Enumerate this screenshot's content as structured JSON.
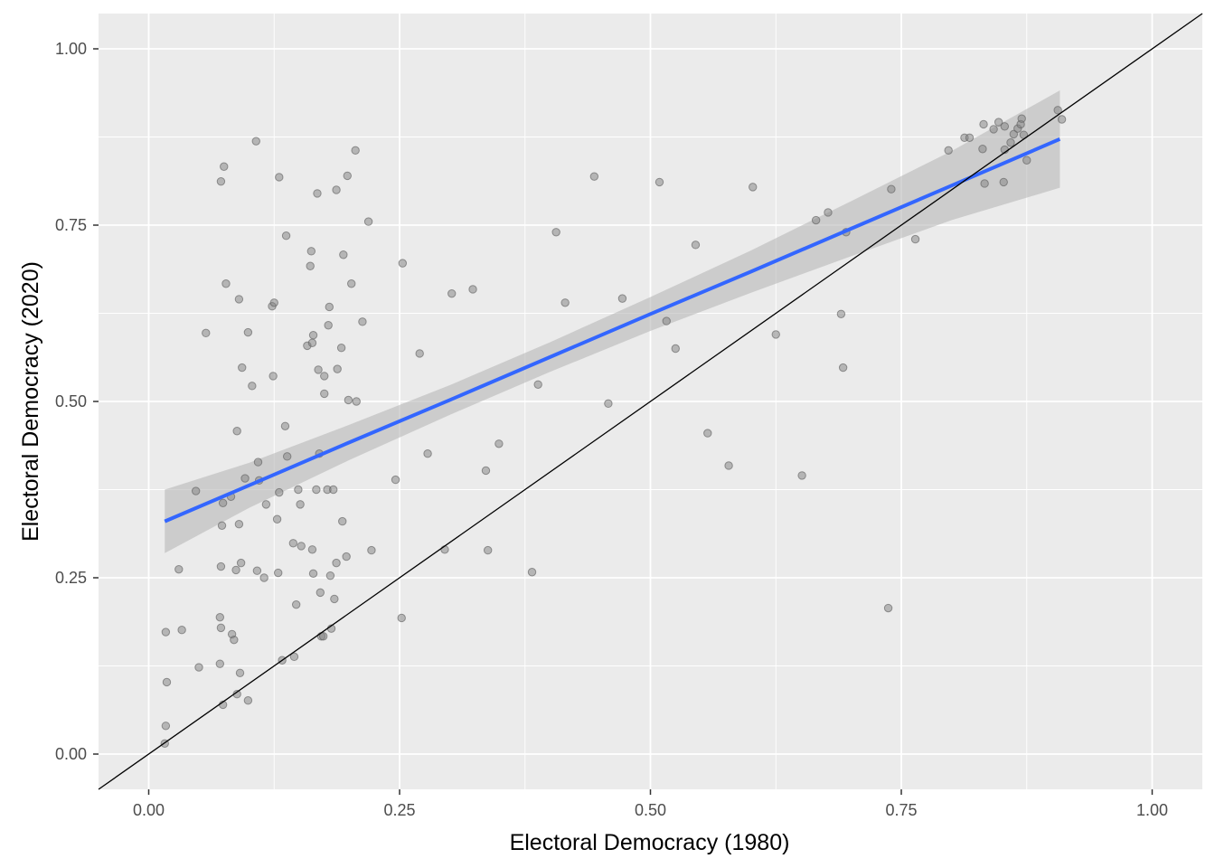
{
  "chart_data": {
    "type": "scatter",
    "xlabel": "Electoral Democracy (1980)",
    "ylabel": "Electoral Democracy (2020)",
    "xlim": [
      -0.05,
      1.05
    ],
    "ylim": [
      -0.05,
      1.05
    ],
    "x_ticks": [
      "0.00",
      "0.25",
      "0.50",
      "0.75",
      "1.00"
    ],
    "y_ticks": [
      "0.00",
      "0.25",
      "0.50",
      "0.75",
      "1.00"
    ],
    "grid": true,
    "colors": {
      "panel_background": "#ebebeb",
      "grid": "#ffffff",
      "points": "#7f7f7f",
      "fit_line": "#3366ff",
      "confidence_band": "#b8b8b8",
      "reference_line": "#000000"
    },
    "reference_line": {
      "intercept": 0,
      "slope": 1
    },
    "fit_line": {
      "x": [
        0.016,
        0.1,
        0.2,
        0.3,
        0.4,
        0.5,
        0.6,
        0.7,
        0.8,
        0.908
      ],
      "y": [
        0.33,
        0.381,
        0.442,
        0.502,
        0.563,
        0.624,
        0.684,
        0.745,
        0.806,
        0.872
      ],
      "lower": [
        0.285,
        0.349,
        0.417,
        0.481,
        0.542,
        0.6,
        0.654,
        0.706,
        0.757,
        0.803
      ],
      "upper": [
        0.375,
        0.413,
        0.467,
        0.523,
        0.584,
        0.648,
        0.714,
        0.784,
        0.855,
        0.941
      ]
    },
    "points": [
      [
        0.016,
        0.015
      ],
      [
        0.017,
        0.04
      ],
      [
        0.017,
        0.173
      ],
      [
        0.018,
        0.102
      ],
      [
        0.03,
        0.262
      ],
      [
        0.033,
        0.176
      ],
      [
        0.047,
        0.373
      ],
      [
        0.05,
        0.123
      ],
      [
        0.057,
        0.597
      ],
      [
        0.071,
        0.128
      ],
      [
        0.071,
        0.194
      ],
      [
        0.072,
        0.179
      ],
      [
        0.072,
        0.266
      ],
      [
        0.072,
        0.812
      ],
      [
        0.073,
        0.324
      ],
      [
        0.074,
        0.356
      ],
      [
        0.074,
        0.07
      ],
      [
        0.075,
        0.833
      ],
      [
        0.077,
        0.667
      ],
      [
        0.082,
        0.365
      ],
      [
        0.083,
        0.17
      ],
      [
        0.085,
        0.162
      ],
      [
        0.087,
        0.261
      ],
      [
        0.088,
        0.085
      ],
      [
        0.088,
        0.458
      ],
      [
        0.09,
        0.645
      ],
      [
        0.09,
        0.326
      ],
      [
        0.091,
        0.115
      ],
      [
        0.092,
        0.271
      ],
      [
        0.093,
        0.548
      ],
      [
        0.096,
        0.391
      ],
      [
        0.099,
        0.598
      ],
      [
        0.099,
        0.076
      ],
      [
        0.103,
        0.522
      ],
      [
        0.107,
        0.869
      ],
      [
        0.108,
        0.26
      ],
      [
        0.109,
        0.414
      ],
      [
        0.11,
        0.388
      ],
      [
        0.115,
        0.25
      ],
      [
        0.117,
        0.354
      ],
      [
        0.123,
        0.635
      ],
      [
        0.124,
        0.536
      ],
      [
        0.125,
        0.64
      ],
      [
        0.128,
        0.333
      ],
      [
        0.129,
        0.257
      ],
      [
        0.13,
        0.818
      ],
      [
        0.13,
        0.371
      ],
      [
        0.133,
        0.133
      ],
      [
        0.136,
        0.465
      ],
      [
        0.137,
        0.735
      ],
      [
        0.138,
        0.422
      ],
      [
        0.144,
        0.299
      ],
      [
        0.145,
        0.138
      ],
      [
        0.147,
        0.212
      ],
      [
        0.149,
        0.375
      ],
      [
        0.151,
        0.354
      ],
      [
        0.152,
        0.295
      ],
      [
        0.158,
        0.579
      ],
      [
        0.161,
        0.692
      ],
      [
        0.162,
        0.713
      ],
      [
        0.163,
        0.583
      ],
      [
        0.163,
        0.29
      ],
      [
        0.164,
        0.256
      ],
      [
        0.164,
        0.594
      ],
      [
        0.167,
        0.375
      ],
      [
        0.168,
        0.795
      ],
      [
        0.169,
        0.545
      ],
      [
        0.17,
        0.426
      ],
      [
        0.171,
        0.229
      ],
      [
        0.172,
        0.167
      ],
      [
        0.174,
        0.167
      ],
      [
        0.175,
        0.536
      ],
      [
        0.175,
        0.511
      ],
      [
        0.178,
        0.375
      ],
      [
        0.179,
        0.608
      ],
      [
        0.18,
        0.634
      ],
      [
        0.181,
        0.253
      ],
      [
        0.182,
        0.178
      ],
      [
        0.184,
        0.375
      ],
      [
        0.185,
        0.22
      ],
      [
        0.187,
        0.8
      ],
      [
        0.187,
        0.271
      ],
      [
        0.188,
        0.546
      ],
      [
        0.192,
        0.576
      ],
      [
        0.193,
        0.33
      ],
      [
        0.194,
        0.708
      ],
      [
        0.197,
        0.28
      ],
      [
        0.198,
        0.82
      ],
      [
        0.199,
        0.502
      ],
      [
        0.202,
        0.667
      ],
      [
        0.206,
        0.856
      ],
      [
        0.207,
        0.5
      ],
      [
        0.213,
        0.613
      ],
      [
        0.219,
        0.755
      ],
      [
        0.222,
        0.289
      ],
      [
        0.246,
        0.389
      ],
      [
        0.252,
        0.193
      ],
      [
        0.253,
        0.696
      ],
      [
        0.27,
        0.568
      ],
      [
        0.278,
        0.426
      ],
      [
        0.295,
        0.29
      ],
      [
        0.302,
        0.653
      ],
      [
        0.323,
        0.659
      ],
      [
        0.336,
        0.402
      ],
      [
        0.338,
        0.289
      ],
      [
        0.349,
        0.44
      ],
      [
        0.382,
        0.258
      ],
      [
        0.388,
        0.524
      ],
      [
        0.406,
        0.74
      ],
      [
        0.415,
        0.64
      ],
      [
        0.444,
        0.819
      ],
      [
        0.458,
        0.497
      ],
      [
        0.472,
        0.646
      ],
      [
        0.509,
        0.811
      ],
      [
        0.516,
        0.614
      ],
      [
        0.525,
        0.575
      ],
      [
        0.545,
        0.722
      ],
      [
        0.557,
        0.455
      ],
      [
        0.578,
        0.409
      ],
      [
        0.602,
        0.804
      ],
      [
        0.625,
        0.595
      ],
      [
        0.651,
        0.395
      ],
      [
        0.665,
        0.757
      ],
      [
        0.677,
        0.768
      ],
      [
        0.69,
        0.624
      ],
      [
        0.692,
        0.548
      ],
      [
        0.695,
        0.74
      ],
      [
        0.737,
        0.207
      ],
      [
        0.74,
        0.801
      ],
      [
        0.764,
        0.73
      ],
      [
        0.797,
        0.856
      ],
      [
        0.813,
        0.874
      ],
      [
        0.818,
        0.874
      ],
      [
        0.831,
        0.858
      ],
      [
        0.832,
        0.893
      ],
      [
        0.833,
        0.809
      ],
      [
        0.842,
        0.886
      ],
      [
        0.847,
        0.896
      ],
      [
        0.852,
        0.811
      ],
      [
        0.853,
        0.89
      ],
      [
        0.853,
        0.857
      ],
      [
        0.859,
        0.867
      ],
      [
        0.862,
        0.879
      ],
      [
        0.866,
        0.887
      ],
      [
        0.869,
        0.893
      ],
      [
        0.87,
        0.901
      ],
      [
        0.872,
        0.878
      ],
      [
        0.875,
        0.842
      ],
      [
        0.906,
        0.913
      ],
      [
        0.91,
        0.9
      ]
    ]
  }
}
